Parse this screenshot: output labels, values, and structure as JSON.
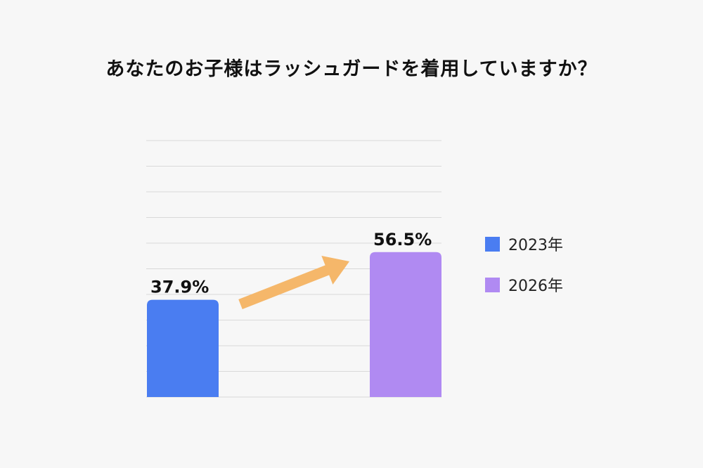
{
  "title": "あなたのお子様はラッシュガードを着用していますか？",
  "chart_data": {
    "type": "bar",
    "categories": [
      "2023年",
      "2026年"
    ],
    "values": [
      37.9,
      56.5
    ],
    "value_labels": [
      "37.9%",
      "56.5%"
    ],
    "colors": [
      "#4a7df1",
      "#b08af2"
    ],
    "ylim": [
      0,
      100
    ],
    "grid": true,
    "legend_position": "right",
    "legend": [
      {
        "label": "2023年",
        "color": "#4a7df1"
      },
      {
        "label": "2026年",
        "color": "#b08af2"
      }
    ],
    "annotation": {
      "type": "arrow",
      "color": "#f5b76a"
    }
  }
}
